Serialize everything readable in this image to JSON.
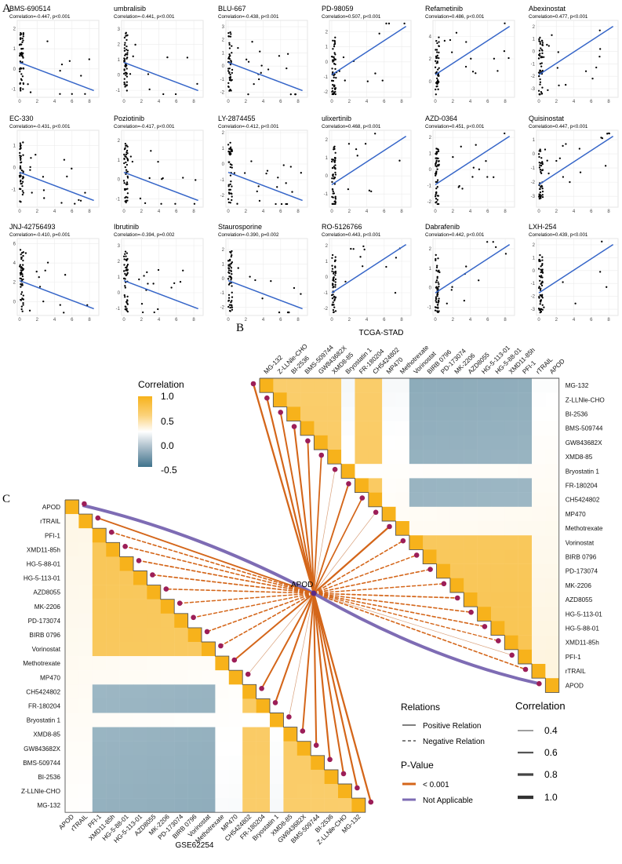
{
  "panels": {
    "a": "A",
    "b": "B",
    "c": "C"
  },
  "scatter": [
    {
      "drug": "BMS-690514",
      "stat": "Correlation=-0.447, p<0.001",
      "slope": -1,
      "ylim": [
        -1.3,
        2.3
      ],
      "yticks": [
        -1,
        0,
        1,
        2
      ]
    },
    {
      "drug": "umbralisib",
      "stat": "Correlation=-0.441, p<0.001",
      "slope": -1,
      "ylim": [
        -1.3,
        3.4
      ],
      "yticks": [
        -1,
        0,
        1,
        2,
        3
      ]
    },
    {
      "drug": "BLU-667",
      "stat": "Correlation=-0.438, p<0.001",
      "slope": -1,
      "ylim": [
        -2.2,
        3.3
      ],
      "yticks": [
        -2,
        -1,
        0,
        1,
        2,
        3
      ]
    },
    {
      "drug": "PD-98059",
      "stat": "Correlation=0.507, p<0.001",
      "slope": 1,
      "ylim": [
        -2.2,
        2.6
      ],
      "yticks": [
        -2,
        -1,
        0,
        1,
        2
      ]
    },
    {
      "drug": "Refametinib",
      "stat": "Correlation=0.486, p<0.001",
      "slope": 1,
      "ylim": [
        -1.2,
        5.2
      ],
      "yticks": [
        0,
        2,
        4
      ]
    },
    {
      "drug": "Abexinostat",
      "stat": "Correlation=0.477, p<0.001",
      "slope": 1,
      "ylim": [
        -3.5,
        2.3
      ],
      "yticks": [
        -3,
        -2,
        -1,
        0,
        1,
        2
      ]
    },
    {
      "drug": "EC-330",
      "stat": "Correlation=-0.431, p<0.001",
      "slope": -1,
      "ylim": [
        -1.7,
        1.6
      ],
      "yticks": [
        -1,
        0,
        1
      ]
    },
    {
      "drug": "Poziotinib",
      "stat": "Correlation=-0.417, p<0.001",
      "slope": -1,
      "ylim": [
        -1.3,
        2.4
      ],
      "yticks": [
        -1,
        0,
        1,
        2
      ]
    },
    {
      "drug": "LY-2874455",
      "stat": "Correlation=-0.412, p<0.001",
      "slope": -1,
      "ylim": [
        -2.6,
        2.0
      ],
      "yticks": [
        -2,
        -1,
        0,
        1,
        2
      ]
    },
    {
      "drug": "ulixertinib",
      "stat": "Correlation=0.468, p<0.001",
      "slope": 1,
      "ylim": [
        -1.6,
        2.4
      ],
      "yticks": [
        -1,
        0,
        1,
        2
      ]
    },
    {
      "drug": "AZD-0364",
      "stat": "Correlation=0.451, p<0.001",
      "slope": 1,
      "ylim": [
        -2.2,
        2.3
      ],
      "yticks": [
        -2,
        -1,
        0,
        1,
        2
      ]
    },
    {
      "drug": "Quisinostat",
      "stat": "Correlation=0.447, p<0.001",
      "slope": 1,
      "ylim": [
        -3.6,
        1.5
      ],
      "yticks": [
        -3,
        -2,
        -1,
        0,
        1
      ]
    },
    {
      "drug": "JNJ-42756493",
      "stat": "Correlation=-0.410, p=0.001",
      "slope": -1,
      "ylim": [
        -1.2,
        6.3
      ],
      "yticks": [
        0,
        2,
        4,
        6
      ]
    },
    {
      "drug": "Ibrutinib",
      "stat": "Correlation=-0.394, p=0.002",
      "slope": -1,
      "ylim": [
        -1.3,
        3.3
      ],
      "yticks": [
        -1,
        0,
        1,
        2,
        3
      ]
    },
    {
      "drug": "Staurosporine",
      "stat": "Correlation=-0.390, p=0.002",
      "slope": -1,
      "ylim": [
        -2.4,
        2.6
      ],
      "yticks": [
        -2,
        -1,
        0,
        1,
        2
      ]
    },
    {
      "drug": "RO-5126766",
      "stat": "Correlation=0.443, p<0.001",
      "slope": 1,
      "ylim": [
        -2.3,
        2.3
      ],
      "yticks": [
        -2,
        -1,
        0,
        1,
        2
      ]
    },
    {
      "drug": "Dabrafenib",
      "stat": "Correlation=0.442, p<0.001",
      "slope": 1,
      "ylim": [
        -1.3,
        2.4
      ],
      "yticks": [
        -1,
        0,
        1,
        2
      ]
    },
    {
      "drug": "LXH-254",
      "stat": "Correlation=0.439, p<0.001",
      "slope": 1,
      "ylim": [
        -3.3,
        2.3
      ],
      "yticks": [
        -3,
        -2,
        -1,
        0,
        1,
        2
      ]
    }
  ],
  "scatter_xticks": [
    0,
    2,
    4,
    6,
    8
  ],
  "heatmap_b": {
    "title": "TCGA-STAD",
    "labels": [
      "MG-132",
      "Z-LLNle-CHO",
      "BI-2536",
      "BMS-509744",
      "GW843682X",
      "XMD8-85",
      "Bryostatin 1",
      "FR-180204",
      "CH5424802",
      "MP470",
      "Methotrexate",
      "Vorinostat",
      "BIRB 0796",
      "PD-173074",
      "MK-2206",
      "AZD8055",
      "HG-5-113-01",
      "HG-5-88-01",
      "XMD11-85h",
      "PFI-1",
      "rTRAIL",
      "APOD"
    ]
  },
  "heatmap_c": {
    "title": "GSE62254",
    "labels": [
      "APOD",
      "rTRAIL",
      "PFI-1",
      "XMD11-85h",
      "HG-5-88-01",
      "HG-5-113-01",
      "AZD8055",
      "MK-2206",
      "PD-173074",
      "BIRB 0796",
      "Vorinostat",
      "Methotrexate",
      "MP470",
      "CH5424802",
      "FR-180204",
      "Bryostatin 1",
      "XMD8-85",
      "GW843682X",
      "BMS-509744",
      "BI-2536",
      "Z-LLNle-CHO",
      "MG-132"
    ]
  },
  "hub_label": "APOD",
  "legend_corr": {
    "title": "Correlation",
    "ticks": [
      "1.0",
      "0.5",
      "0.0",
      "-0.5"
    ]
  },
  "legend_rel": {
    "title": "Relations",
    "items": [
      "Positive Relation",
      "Negative Relation"
    ]
  },
  "legend_p": {
    "title": "P-Value",
    "items": [
      "< 0.001",
      "Not Applicable"
    ]
  },
  "legend_width": {
    "title": "Correlation",
    "ticks": [
      "0.4",
      "0.6",
      "0.8",
      "1.0"
    ]
  },
  "colors": {
    "high": "#F7B21B",
    "mid": "#FFFFFF",
    "low": "#40738C",
    "orange": "#D4661A",
    "purple": "#7E6CB4",
    "node": "#9C1E58",
    "fit": "#3565C8"
  }
}
